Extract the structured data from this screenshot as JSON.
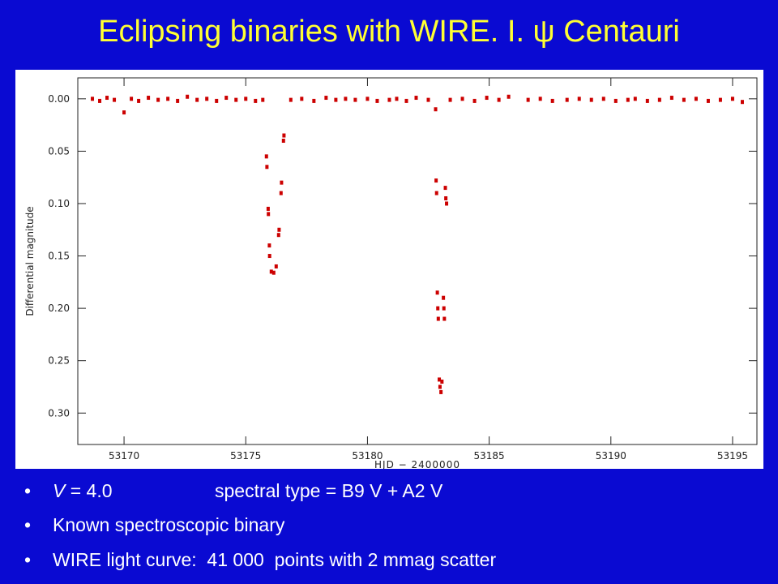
{
  "title": "Eclipsing binaries with WIRE. I. ψ Centauri",
  "chart_data": {
    "type": "scatter",
    "xlabel": "HJD − 2400000",
    "ylabel": "Differential magnitude",
    "xlim": [
      53168.1,
      53196.0
    ],
    "ylim": [
      -0.02,
      0.33
    ],
    "y_inverted": true,
    "xticks": [
      53170,
      53175,
      53180,
      53185,
      53190,
      53195
    ],
    "yticks": [
      {
        "value": 0,
        "label": "0.00"
      },
      0.05,
      {
        "value": 0.1,
        "label": "0.10"
      },
      0.15,
      {
        "value": 0.2,
        "label": "0.20"
      },
      0.25,
      {
        "value": 0.3,
        "label": "0.30"
      }
    ],
    "series": [
      {
        "color": "#cc0000",
        "x": [
          53168.7,
          53169.0,
          53169.3,
          53169.6,
          53170.0,
          53170.3,
          53170.6,
          53171.0,
          53171.4,
          53171.8,
          53172.2,
          53172.6,
          53173.0,
          53173.4,
          53173.8,
          53174.2,
          53174.6,
          53175.0,
          53175.4,
          53175.7,
          53175.85,
          53175.87,
          53175.92,
          53175.93,
          53175.97,
          53175.98,
          53176.05,
          53176.15,
          53176.25,
          53176.35,
          53176.37,
          53176.45,
          53176.47,
          53176.55,
          53176.57,
          53176.85,
          53177.3,
          53177.8,
          53178.3,
          53178.7,
          53179.1,
          53179.5,
          53180.0,
          53180.4,
          53180.9,
          53181.2,
          53181.6,
          53182.0,
          53182.5,
          53182.8,
          53182.82,
          53182.84,
          53182.87,
          53182.89,
          53182.91,
          53182.95,
          53182.98,
          53183.02,
          53183.06,
          53183.12,
          53183.14,
          53183.16,
          53183.2,
          53183.22,
          53183.25,
          53183.4,
          53183.9,
          53184.4,
          53184.9,
          53185.4,
          53185.8,
          53186.6,
          53187.1,
          53187.6,
          53188.2,
          53188.7,
          53189.2,
          53189.7,
          53190.2,
          53190.7,
          53191.0,
          53191.5,
          53192.0,
          53192.5,
          53193.0,
          53193.5,
          53194.0,
          53194.5,
          53195.0,
          53195.4
        ],
        "values": [
          0.0,
          0.002,
          -0.001,
          0.001,
          0.013,
          0.0,
          0.002,
          -0.001,
          0.001,
          0.0,
          0.002,
          -0.002,
          0.001,
          0.0,
          0.002,
          -0.001,
          0.001,
          0.0,
          0.002,
          0.001,
          0.055,
          0.065,
          0.105,
          0.11,
          0.14,
          0.15,
          0.165,
          0.166,
          0.16,
          0.13,
          0.125,
          0.09,
          0.08,
          0.04,
          0.035,
          0.001,
          0.0,
          0.002,
          -0.001,
          0.001,
          0.0,
          0.001,
          0.0,
          0.002,
          0.001,
          0.0,
          0.002,
          -0.001,
          0.001,
          0.01,
          0.078,
          0.09,
          0.185,
          0.2,
          0.21,
          0.268,
          0.275,
          0.28,
          0.27,
          0.19,
          0.2,
          0.21,
          0.085,
          0.095,
          0.1,
          0.001,
          0.0,
          0.002,
          -0.001,
          0.001,
          -0.002,
          0.001,
          0.0,
          0.002,
          0.001,
          0.0,
          0.001,
          0.0,
          0.002,
          0.001,
          0.0,
          0.002,
          0.001,
          -0.001,
          0.001,
          0.0,
          0.002,
          0.001,
          0.0,
          0.003
        ]
      }
    ]
  },
  "bullets": [
    {
      "variable": "V",
      "value": "= 4.0",
      "spectral": "spectral type = B9 V + A2 V"
    },
    "Known spectroscopic binary",
    "WIRE light curve:  41 000  points with 2 mmag scatter"
  ]
}
